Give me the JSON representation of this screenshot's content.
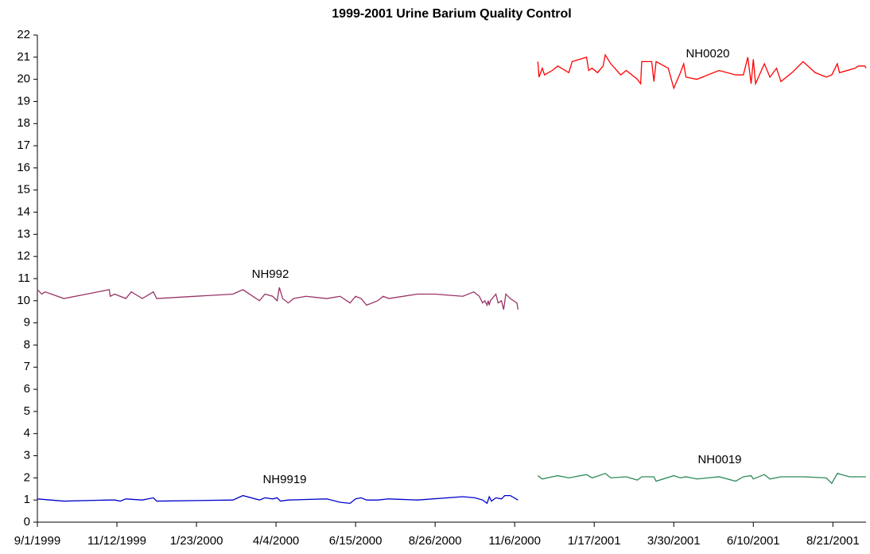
{
  "chart_data": {
    "type": "line",
    "title": "1999-2001 Urine Barium Quality Control",
    "xlim": [
      "1999-09-01",
      "2001-09-20"
    ],
    "xticks": [
      {
        "value": "1999-09-01",
        "label": "9/1/1999"
      },
      {
        "value": "1999-11-12",
        "label": "11/12/1999"
      },
      {
        "value": "2000-01-23",
        "label": "1/23/2000"
      },
      {
        "value": "2000-04-04",
        "label": "4/4/2000"
      },
      {
        "value": "2000-06-15",
        "label": "6/15/2000"
      },
      {
        "value": "2000-08-26",
        "label": "8/26/2000"
      },
      {
        "value": "2000-11-06",
        "label": "11/6/2000"
      },
      {
        "value": "2001-01-17",
        "label": "1/17/2001"
      },
      {
        "value": "2001-03-30",
        "label": "3/30/2001"
      },
      {
        "value": "2001-06-10",
        "label": "6/10/2001"
      },
      {
        "value": "2001-08-21",
        "label": "8/21/2001"
      }
    ],
    "ylim": [
      0,
      22
    ],
    "yticks": [
      0,
      1,
      2,
      3,
      4,
      5,
      6,
      7,
      8,
      9,
      10,
      11,
      12,
      13,
      14,
      15,
      16,
      17,
      18,
      19,
      20,
      21,
      22
    ],
    "grid": false,
    "series": [
      {
        "name": "NH992",
        "color": "#993366",
        "x": [
          "1999-09-01",
          "1999-09-05",
          "1999-09-08",
          "1999-09-25",
          "1999-11-05",
          "1999-11-06",
          "1999-11-10",
          "1999-11-20",
          "1999-11-25",
          "1999-12-05",
          "1999-12-15",
          "1999-12-18",
          "2000-02-25",
          "2000-03-05",
          "2000-03-20",
          "2000-03-25",
          "2000-04-01",
          "2000-04-05",
          "2000-04-07",
          "2000-04-10",
          "2000-04-15",
          "2000-04-20",
          "2000-05-01",
          "2000-05-20",
          "2000-06-01",
          "2000-06-10",
          "2000-06-15",
          "2000-06-20",
          "2000-06-25",
          "2000-07-05",
          "2000-07-10",
          "2000-07-15",
          "2000-08-10",
          "2000-08-26",
          "2000-09-20",
          "2000-09-30",
          "2000-10-05",
          "2000-10-08",
          "2000-10-10",
          "2000-10-12",
          "2000-10-13",
          "2000-10-14",
          "2000-10-15",
          "2000-10-20",
          "2000-10-22",
          "2000-10-25",
          "2000-10-27",
          "2000-10-29",
          "2000-11-02",
          "2000-11-08",
          "2000-11-09"
        ],
        "values": [
          10.5,
          10.3,
          10.4,
          10.1,
          10.5,
          10.2,
          10.3,
          10.1,
          10.4,
          10.1,
          10.4,
          10.1,
          10.3,
          10.5,
          10.0,
          10.3,
          10.2,
          10.0,
          10.6,
          10.1,
          9.9,
          10.1,
          10.2,
          10.1,
          10.2,
          9.9,
          10.2,
          10.1,
          9.8,
          10.0,
          10.2,
          10.1,
          10.3,
          10.3,
          10.2,
          10.4,
          10.2,
          9.9,
          10.0,
          9.8,
          10.0,
          9.8,
          10.0,
          10.3,
          9.9,
          10.0,
          9.6,
          10.3,
          10.1,
          9.9,
          9.6
        ]
      },
      {
        "name": "NH9919",
        "color": "#0000cc",
        "x": [
          "1999-09-01",
          "1999-09-25",
          "1999-11-05",
          "1999-11-10",
          "1999-11-15",
          "1999-11-20",
          "1999-12-05",
          "1999-12-15",
          "1999-12-18",
          "2000-02-25",
          "2000-03-05",
          "2000-03-20",
          "2000-03-25",
          "2000-04-01",
          "2000-04-05",
          "2000-04-08",
          "2000-04-15",
          "2000-05-20",
          "2000-06-01",
          "2000-06-10",
          "2000-06-15",
          "2000-06-20",
          "2000-06-25",
          "2000-07-05",
          "2000-07-15",
          "2000-08-10",
          "2000-09-20",
          "2000-10-01",
          "2000-10-08",
          "2000-10-12",
          "2000-10-14",
          "2000-10-16",
          "2000-10-20",
          "2000-10-25",
          "2000-10-28",
          "2000-11-02",
          "2000-11-09"
        ],
        "values": [
          1.05,
          0.95,
          1.0,
          1.0,
          0.95,
          1.05,
          1.0,
          1.1,
          0.95,
          1.0,
          1.2,
          1.0,
          1.1,
          1.05,
          1.1,
          0.95,
          1.0,
          1.05,
          0.9,
          0.85,
          1.05,
          1.1,
          1.0,
          1.0,
          1.05,
          1.0,
          1.15,
          1.1,
          1.0,
          0.85,
          1.15,
          0.95,
          1.1,
          1.05,
          1.2,
          1.2,
          1.0
        ]
      },
      {
        "name": "NH0020",
        "color": "#ff0000",
        "x": [
          "2000-11-27",
          "2000-11-28",
          "2000-12-01",
          "2000-12-03",
          "2000-12-10",
          "2000-12-15",
          "2000-12-25",
          "2000-12-28",
          "2001-01-10",
          "2001-01-12",
          "2001-01-15",
          "2001-01-20",
          "2001-01-25",
          "2001-01-27",
          "2001-02-01",
          "2001-02-10",
          "2001-02-15",
          "2001-02-25",
          "2001-02-28",
          "2001-03-01",
          "2001-03-10",
          "2001-03-12",
          "2001-03-14",
          "2001-03-25",
          "2001-03-30",
          "2001-04-05",
          "2001-04-08",
          "2001-04-10",
          "2001-04-20",
          "2001-05-10",
          "2001-05-25",
          "2001-06-01",
          "2001-06-05",
          "2001-06-08",
          "2001-06-10",
          "2001-06-12",
          "2001-06-20",
          "2001-06-25",
          "2001-07-01",
          "2001-07-05",
          "2001-07-15",
          "2001-07-25",
          "2001-08-05",
          "2001-08-15",
          "2001-08-20",
          "2001-08-25",
          "2001-08-27",
          "2001-09-10",
          "2001-09-13",
          "2001-09-19",
          "2001-09-20"
        ],
        "values": [
          20.8,
          20.1,
          20.5,
          20.2,
          20.4,
          20.6,
          20.3,
          20.8,
          21.0,
          20.4,
          20.5,
          20.3,
          20.6,
          21.1,
          20.7,
          20.2,
          20.4,
          20.0,
          19.8,
          20.8,
          20.8,
          19.9,
          20.8,
          20.5,
          19.6,
          20.3,
          20.7,
          20.1,
          20.0,
          20.4,
          20.2,
          20.2,
          21.0,
          19.8,
          20.9,
          19.8,
          20.7,
          20.1,
          20.5,
          19.9,
          20.3,
          20.8,
          20.3,
          20.1,
          20.2,
          20.7,
          20.3,
          20.5,
          20.6,
          20.6,
          20.5
        ]
      },
      {
        "name": "NH0019",
        "color": "#2e8b57",
        "x": [
          "2000-11-27",
          "2000-12-01",
          "2000-12-10",
          "2000-12-15",
          "2000-12-25",
          "2001-01-10",
          "2001-01-15",
          "2001-01-27",
          "2001-02-01",
          "2001-02-15",
          "2001-02-25",
          "2001-03-01",
          "2001-03-12",
          "2001-03-14",
          "2001-03-30",
          "2001-04-05",
          "2001-04-10",
          "2001-04-20",
          "2001-05-10",
          "2001-05-25",
          "2001-06-01",
          "2001-06-08",
          "2001-06-10",
          "2001-06-20",
          "2001-06-25",
          "2001-07-05",
          "2001-07-25",
          "2001-08-15",
          "2001-08-20",
          "2001-08-25",
          "2001-09-05",
          "2001-09-20"
        ],
        "values": [
          2.1,
          1.95,
          2.05,
          2.1,
          2.0,
          2.15,
          2.0,
          2.2,
          2.0,
          2.05,
          1.9,
          2.05,
          2.05,
          1.85,
          2.1,
          2.0,
          2.05,
          1.95,
          2.05,
          1.85,
          2.05,
          2.1,
          1.95,
          2.15,
          1.95,
          2.05,
          2.05,
          2.0,
          1.75,
          2.2,
          2.05,
          2.05
        ]
      }
    ]
  }
}
